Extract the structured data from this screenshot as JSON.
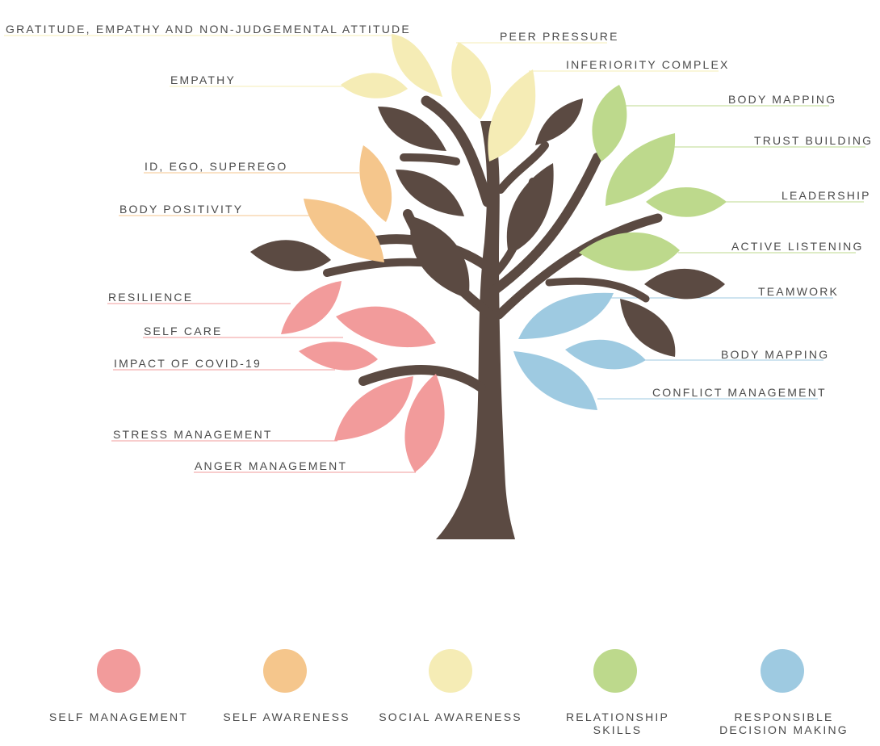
{
  "colors": {
    "trunk": "#5b4a42",
    "self_management": "#f29b9b",
    "self_awareness": "#f5c68c",
    "social_awareness": "#f5ecb5",
    "relationship_skills": "#bdd98c",
    "responsible_decision_making": "#9ecae1"
  },
  "labels": {
    "gratitude": "GRATITUDE, EMPATHY AND NON-JUDGEMENTAL ATTITUDE",
    "peer_pressure": "PEER PRESSURE",
    "inferiority": "INFERIORITY COMPLEX",
    "empathy": "EMPATHY",
    "body_mapping_top": "BODY MAPPING",
    "trust_building": "TRUST BUILDING",
    "id_ego": "ID, EGO, SUPEREGO",
    "leadership": "LEADERSHIP",
    "body_positivity": "BODY POSITIVITY",
    "active_listening": "ACTIVE LISTENING",
    "teamwork": "TEAMWORK",
    "resilience": "RESILIENCE",
    "self_care": "SELF CARE",
    "body_mapping_bottom": "BODY MAPPING",
    "impact_covid": "IMPACT OF COVID-19",
    "conflict_management": "CONFLICT MANAGEMENT",
    "stress_management": "STRESS MANAGEMENT",
    "anger_management": "ANGER MANAGEMENT"
  },
  "legend": [
    {
      "label": "SELF MANAGEMENT",
      "color": "#f29b9b"
    },
    {
      "label": "SELF AWARENESS",
      "color": "#f5c68c"
    },
    {
      "label": "SOCIAL AWARENESS",
      "color": "#f5ecb5"
    },
    {
      "label": "RELATIONSHIP SKILLS",
      "color": "#bdd98c"
    },
    {
      "label": "RESPONSIBLE DECISION MAKING",
      "color": "#9ecae1"
    }
  ]
}
